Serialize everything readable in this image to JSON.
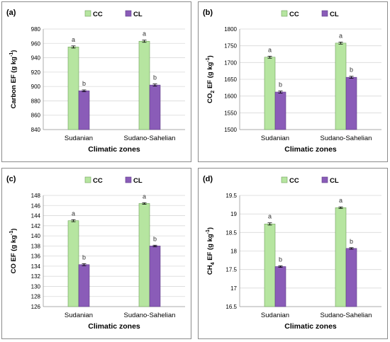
{
  "colors": {
    "cc": "#b6e5a0",
    "cc_stroke": "#6fa05a",
    "cl": "#8a5cb8",
    "cl_stroke": "#5e3a86",
    "grid": "#d9d9d9"
  },
  "chart_data": [
    {
      "type": "bar",
      "panel_label": "(a)",
      "categories": [
        "Sudanian",
        "Sudano-Sahelian"
      ],
      "series": [
        {
          "name": "CC",
          "values": [
            955,
            963
          ],
          "errors": [
            1.5,
            1.5
          ],
          "letters": [
            "a",
            "a"
          ]
        },
        {
          "name": "CL",
          "values": [
            894,
            902
          ],
          "errors": [
            1.2,
            1.5
          ],
          "letters": [
            "b",
            "b"
          ]
        }
      ],
      "xlabel": "Climatic zones",
      "ylabel_main": "Carbon  EF (g kg",
      "ylabel_sub": "",
      "ylabel_rest": "",
      "ylabel_sup": "-1",
      "ylabel_close": ")",
      "ylim": [
        840,
        980
      ],
      "yticks": [
        "840",
        "860",
        "880",
        "900",
        "920",
        "940",
        "960",
        "980"
      ],
      "grid": true,
      "legend": "top"
    },
    {
      "type": "bar",
      "panel_label": "(b)",
      "categories": [
        "Sudanian",
        "Sudano-Sahelian"
      ],
      "series": [
        {
          "name": "CC",
          "values": [
            1716,
            1758
          ],
          "errors": [
            3,
            3
          ],
          "letters": [
            "a",
            "a"
          ]
        },
        {
          "name": "CL",
          "values": [
            1612,
            1656
          ],
          "errors": [
            3,
            3
          ],
          "letters": [
            "b",
            "b"
          ]
        }
      ],
      "xlabel": "Climatic zones",
      "ylabel_main": "CO",
      "ylabel_sub": "2",
      "ylabel_rest": " EF (g kg",
      "ylabel_sup": "-1",
      "ylabel_close": ")",
      "ylim": [
        1500,
        1800
      ],
      "yticks": [
        "1500",
        "1550",
        "1600",
        "1650",
        "1700",
        "1750",
        "1800"
      ],
      "grid": true,
      "legend": "top"
    },
    {
      "type": "bar",
      "panel_label": "(c)",
      "categories": [
        "Sudanian",
        "Sudano-Sahelian"
      ],
      "series": [
        {
          "name": "CC",
          "values": [
            143,
            146.4
          ],
          "errors": [
            0.2,
            0.15
          ],
          "letters": [
            "a",
            "a"
          ]
        },
        {
          "name": "CL",
          "values": [
            134.3,
            138
          ],
          "errors": [
            0.2,
            0.15
          ],
          "letters": [
            "b",
            "b"
          ]
        }
      ],
      "xlabel": "Climatic zones",
      "ylabel_main": "CO  EF (g kg",
      "ylabel_sub": "",
      "ylabel_rest": "",
      "ylabel_sup": "-1",
      "ylabel_close": ")",
      "ylim": [
        126,
        148
      ],
      "yticks": [
        "126",
        "128",
        "130",
        "132",
        "134",
        "136",
        "138",
        "140",
        "142",
        "144",
        "146",
        "148"
      ],
      "grid": true,
      "legend": "top"
    },
    {
      "type": "bar",
      "panel_label": "(d)",
      "categories": [
        "Sudanian",
        "Sudano-Sahelian"
      ],
      "series": [
        {
          "name": "CC",
          "values": [
            18.73,
            19.17
          ],
          "errors": [
            0.03,
            0.02
          ],
          "letters": [
            "a",
            "a"
          ]
        },
        {
          "name": "CL",
          "values": [
            17.58,
            18.07
          ],
          "errors": [
            0.02,
            0.02
          ],
          "letters": [
            "b",
            "b"
          ]
        }
      ],
      "xlabel": "Climatic zones",
      "ylabel_main": "CH",
      "ylabel_sub": "4",
      "ylabel_rest": "  EF (g kg",
      "ylabel_sup": "-1",
      "ylabel_close": ")",
      "ylim": [
        16.5,
        19.5
      ],
      "yticks": [
        "16.5",
        "17",
        "17.5",
        "18",
        "18.5",
        "19",
        "19.5"
      ],
      "grid": true,
      "legend": "top"
    }
  ]
}
